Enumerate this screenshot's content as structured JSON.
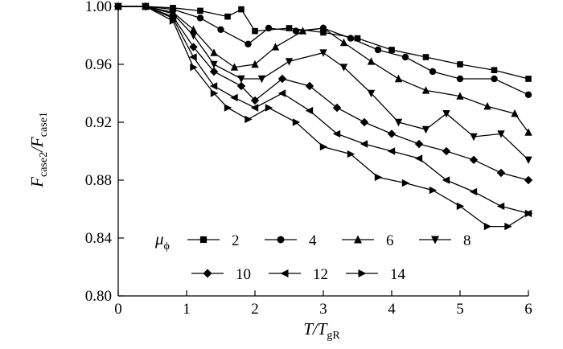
{
  "chart_data": {
    "type": "line",
    "title": "",
    "xlabel": {
      "main": "T/T",
      "sub": "gR"
    },
    "ylabel": {
      "main": "F",
      "sub1": "case2",
      "mid": "/F",
      "sub2": "case1"
    },
    "xlim": [
      0,
      6
    ],
    "ylim": [
      0.8,
      1.0
    ],
    "xticks": [
      0,
      1,
      2,
      3,
      4,
      5,
      6
    ],
    "xtick_labels": [
      "0",
      "1",
      "2",
      "3",
      "4",
      "5",
      "6"
    ],
    "yticks": [
      0.8,
      0.84,
      0.88,
      0.92,
      0.96,
      1.0
    ],
    "ytick_labels": [
      "0.80",
      "0.84",
      "0.88",
      "0.92",
      "0.96",
      "1.00"
    ],
    "grid": false,
    "legend": {
      "title_symbol": "μ",
      "title_sub": "ϕ",
      "placement": "bottom-left",
      "entries": [
        "2",
        "4",
        "6",
        "8",
        "10",
        "12",
        "14"
      ]
    },
    "series": [
      {
        "name": "2",
        "marker": "square",
        "x": [
          0,
          0.4,
          0.8,
          1.2,
          1.6,
          1.8,
          2.0,
          2.5,
          3.0,
          3.5,
          4.0,
          4.5,
          5.0,
          5.5,
          6.0
        ],
        "y": [
          1.0,
          1.0,
          0.999,
          0.997,
          0.993,
          0.998,
          0.983,
          0.985,
          0.982,
          0.978,
          0.97,
          0.965,
          0.96,
          0.956,
          0.95
        ]
      },
      {
        "name": "4",
        "marker": "circle",
        "x": [
          0,
          0.4,
          0.8,
          1.2,
          1.5,
          1.9,
          2.2,
          2.6,
          3.0,
          3.4,
          3.8,
          4.2,
          4.6,
          5.0,
          5.5,
          6.0
        ],
        "y": [
          1.0,
          1.0,
          0.998,
          0.992,
          0.984,
          0.974,
          0.985,
          0.983,
          0.985,
          0.978,
          0.97,
          0.965,
          0.955,
          0.95,
          0.95,
          0.939
        ]
      },
      {
        "name": "6",
        "marker": "triangle-up",
        "x": [
          0,
          0.4,
          0.8,
          1.1,
          1.4,
          1.7,
          2.0,
          2.3,
          2.7,
          3.0,
          3.3,
          3.7,
          4.1,
          4.5,
          5.0,
          5.4,
          5.8,
          6.0
        ],
        "y": [
          1.0,
          1.0,
          0.996,
          0.984,
          0.968,
          0.958,
          0.96,
          0.972,
          0.983,
          0.985,
          0.975,
          0.962,
          0.95,
          0.942,
          0.938,
          0.931,
          0.926,
          0.913
        ]
      },
      {
        "name": "8",
        "marker": "triangle-down",
        "x": [
          0,
          0.4,
          0.8,
          1.1,
          1.4,
          1.8,
          2.1,
          2.5,
          3.0,
          3.3,
          3.7,
          4.1,
          4.5,
          4.8,
          5.2,
          5.6,
          6.0
        ],
        "y": [
          1.0,
          1.0,
          0.995,
          0.98,
          0.96,
          0.95,
          0.95,
          0.962,
          0.968,
          0.958,
          0.94,
          0.92,
          0.915,
          0.926,
          0.91,
          0.912,
          0.894
        ]
      },
      {
        "name": "10",
        "marker": "diamond",
        "x": [
          0,
          0.4,
          0.8,
          1.1,
          1.4,
          1.8,
          2.0,
          2.4,
          2.8,
          3.2,
          3.6,
          4.0,
          4.4,
          4.8,
          5.2,
          5.6,
          6.0
        ],
        "y": [
          1.0,
          1.0,
          0.993,
          0.972,
          0.955,
          0.945,
          0.935,
          0.95,
          0.945,
          0.93,
          0.92,
          0.912,
          0.905,
          0.9,
          0.894,
          0.885,
          0.88
        ]
      },
      {
        "name": "12",
        "marker": "triangle-left",
        "x": [
          0,
          0.4,
          0.8,
          1.1,
          1.4,
          1.7,
          2.0,
          2.4,
          2.8,
          3.2,
          3.6,
          4.0,
          4.4,
          4.8,
          5.2,
          5.6,
          6.0
        ],
        "y": [
          1.0,
          1.0,
          0.992,
          0.965,
          0.945,
          0.937,
          0.93,
          0.94,
          0.928,
          0.912,
          0.905,
          0.9,
          0.895,
          0.88,
          0.872,
          0.862,
          0.857
        ]
      },
      {
        "name": "14",
        "marker": "triangle-right",
        "x": [
          0,
          0.4,
          0.8,
          1.1,
          1.4,
          1.6,
          1.9,
          2.2,
          2.6,
          3.0,
          3.4,
          3.8,
          4.2,
          4.6,
          5.0,
          5.4,
          5.7,
          6.0
        ],
        "y": [
          1.0,
          1.0,
          0.99,
          0.958,
          0.94,
          0.93,
          0.922,
          0.93,
          0.92,
          0.903,
          0.898,
          0.882,
          0.878,
          0.873,
          0.862,
          0.848,
          0.848,
          0.857
        ]
      }
    ]
  }
}
